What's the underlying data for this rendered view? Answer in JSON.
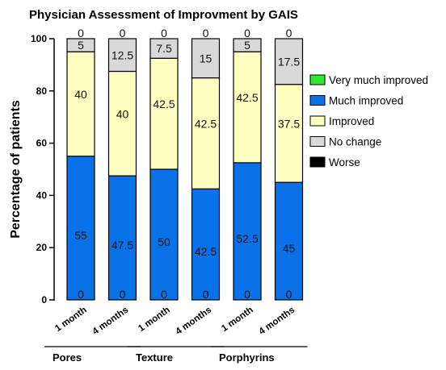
{
  "chart_data": {
    "type": "bar",
    "stacked": true,
    "title": "Physician  Assessment of Improvment by GAIS",
    "ylabel": "Percentage of patients",
    "xlabel": "",
    "ylim": [
      0,
      100
    ],
    "yticks": [
      0,
      20,
      40,
      60,
      80,
      100
    ],
    "categories": [
      "1 month",
      "4 months",
      "1 month",
      "4 months",
      "1 month",
      "4 months"
    ],
    "groups": [
      {
        "label": "Pores",
        "categories": [
          0,
          1
        ]
      },
      {
        "label": "Texture",
        "categories": [
          2,
          3
        ]
      },
      {
        "label": "Porphyrins",
        "categories": [
          4,
          5
        ]
      }
    ],
    "series": [
      {
        "name": "Worse",
        "color": "#000000",
        "values": [
          0,
          0,
          0,
          0,
          0,
          0
        ]
      },
      {
        "name": "Much improved",
        "color": "#0a72e8",
        "values": [
          55,
          47.5,
          50,
          42.5,
          52.5,
          45
        ]
      },
      {
        "name": "Improved",
        "color": "#ffffc0",
        "values": [
          40,
          40,
          42.5,
          42.5,
          42.5,
          37.5
        ]
      },
      {
        "name": "No change",
        "color": "#d9d9d9",
        "values": [
          5,
          12.5,
          7.5,
          15,
          5,
          17.5
        ]
      },
      {
        "name": "Very much improved",
        "color": "#33e633",
        "values": [
          0,
          0,
          0,
          0,
          0,
          0
        ]
      }
    ],
    "legend_order": [
      "Very much improved",
      "Much improved",
      "Improved",
      "No change",
      "Worse"
    ],
    "data_labels": [
      {
        "series": "Worse",
        "labels": [
          "0",
          "0",
          "0",
          "0",
          "0",
          "0"
        ]
      },
      {
        "series": "Much improved",
        "labels": [
          "55",
          "47.5",
          "50",
          "42.5",
          "52.5",
          "45"
        ]
      },
      {
        "series": "Improved",
        "labels": [
          "40",
          "40",
          "42.5",
          "42.5",
          "42.5",
          "37.5"
        ]
      },
      {
        "series": "No change",
        "labels": [
          "5",
          "12.5",
          "7.5",
          "15",
          "5",
          "17.5"
        ]
      },
      {
        "series": "Very much improved",
        "labels": [
          "0",
          "0",
          "0",
          "0",
          "0",
          "0"
        ]
      }
    ],
    "legend_position": "right",
    "grid": false
  }
}
